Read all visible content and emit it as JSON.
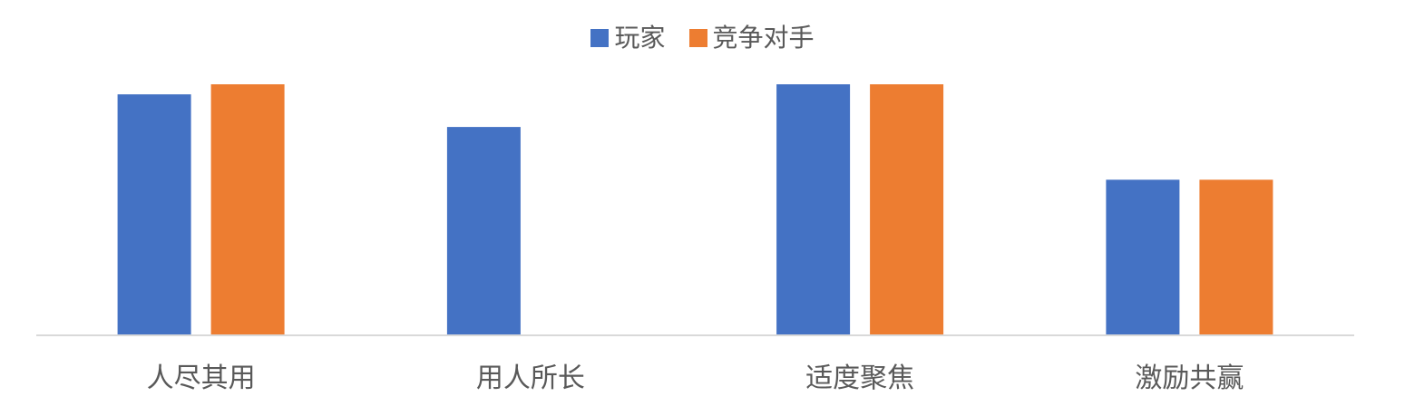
{
  "chart_data": {
    "type": "bar",
    "categories": [
      "人尽其用",
      "用人所长",
      "适度聚焦",
      "激励共赢"
    ],
    "series": [
      {
        "name": "玩家",
        "color": "#4472C4",
        "values": [
          96,
          83,
          100,
          62
        ]
      },
      {
        "name": "竞争对手",
        "color": "#ED7D31",
        "values": [
          100,
          0,
          100,
          62
        ]
      }
    ],
    "ylim": [
      0,
      100
    ],
    "grid": false,
    "legend_position": "top"
  }
}
